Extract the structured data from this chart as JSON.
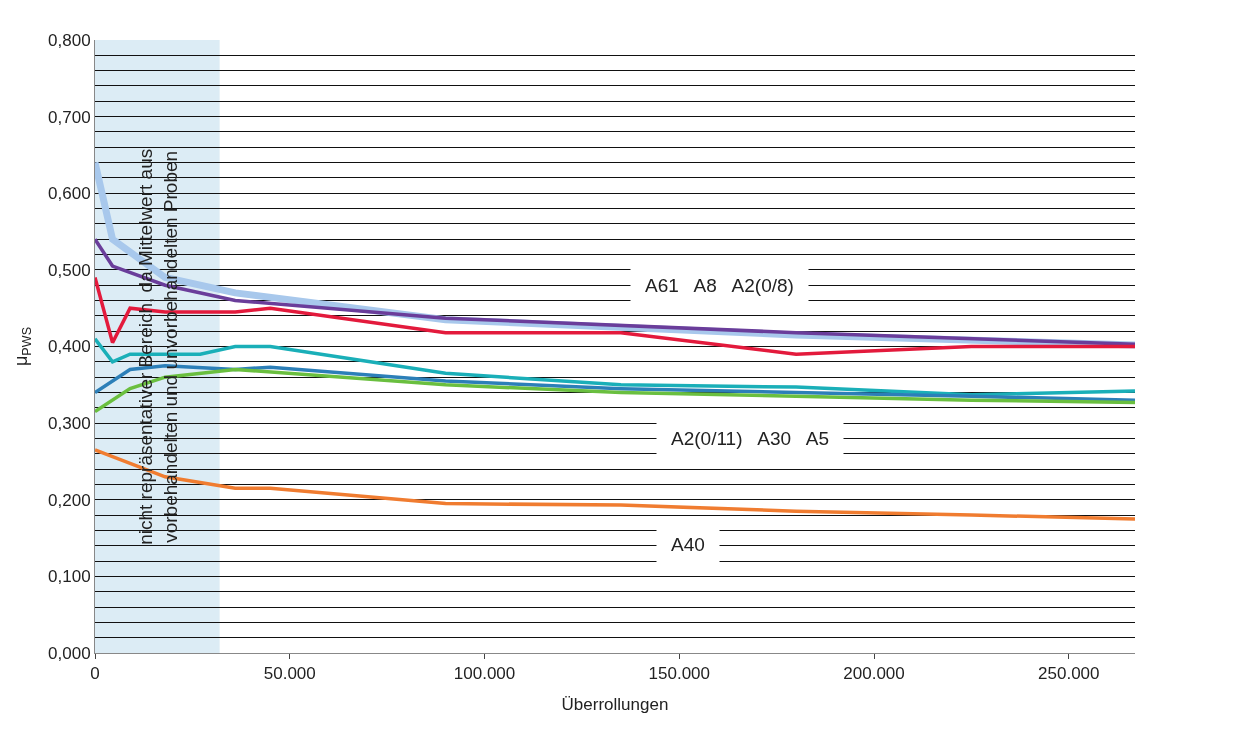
{
  "chart_data": {
    "type": "line",
    "xlabel": "Überrollungen",
    "ylabel": "μ$_{PWS}$",
    "xlim": [
      0,
      267000
    ],
    "xticks": [
      0,
      {
        "value": 50000,
        "label": "50.000"
      },
      {
        "value": 100000,
        "label": "100.000"
      },
      {
        "value": 150000,
        "label": "150.000"
      },
      {
        "value": 200000,
        "label": "200.000"
      },
      {
        "value": 250000,
        "label": "250.000"
      }
    ],
    "ylim": [
      0,
      0.8
    ],
    "yticks": [
      {
        "value": 0,
        "label": "0,000"
      },
      {
        "value": 0.02,
        "label": null
      },
      {
        "value": 0.04,
        "label": null
      },
      {
        "value": 0.06,
        "label": null
      },
      {
        "value": 0.08,
        "label": null
      },
      {
        "value": 0.1,
        "label": "0,100"
      },
      {
        "value": 0.12,
        "label": null
      },
      {
        "value": 0.14,
        "label": null
      },
      {
        "value": 0.16,
        "label": null
      },
      {
        "value": 0.18,
        "label": null
      },
      {
        "value": 0.2,
        "label": "0,200"
      },
      {
        "value": 0.22,
        "label": null
      },
      {
        "value": 0.24,
        "label": null
      },
      {
        "value": 0.26,
        "label": null
      },
      {
        "value": 0.28,
        "label": null
      },
      {
        "value": 0.3,
        "label": "0,300"
      },
      {
        "value": 0.32,
        "label": null
      },
      {
        "value": 0.34,
        "label": null
      },
      {
        "value": 0.36,
        "label": null
      },
      {
        "value": 0.38,
        "label": null
      },
      {
        "value": 0.4,
        "label": "0,400"
      },
      {
        "value": 0.42,
        "label": null
      },
      {
        "value": 0.44,
        "label": null
      },
      {
        "value": 0.46,
        "label": null
      },
      {
        "value": 0.48,
        "label": null
      },
      {
        "value": 0.5,
        "label": "0,500"
      },
      {
        "value": 0.52,
        "label": null
      },
      {
        "value": 0.54,
        "label": null
      },
      {
        "value": 0.56,
        "label": null
      },
      {
        "value": 0.58,
        "label": null
      },
      {
        "value": 0.6,
        "label": "0,600"
      },
      {
        "value": 0.62,
        "label": null
      },
      {
        "value": 0.64,
        "label": null
      },
      {
        "value": 0.66,
        "label": null
      },
      {
        "value": 0.68,
        "label": null
      },
      {
        "value": 0.7,
        "label": "0,700"
      },
      {
        "value": 0.72,
        "label": null
      },
      {
        "value": 0.74,
        "label": null
      },
      {
        "value": 0.76,
        "label": null
      },
      {
        "value": 0.78,
        "label": null
      },
      {
        "value": 0.8,
        "label": "0,800"
      }
    ],
    "grid": "y",
    "marker": "none",
    "line_style": "solid",
    "series": [
      {
        "color": "#a8c8ec",
        "x": [
          0,
          4500,
          18000,
          36000,
          90000,
          180000,
          267000
        ],
        "values": [
          0.64,
          0.54,
          0.49,
          0.47,
          0.435,
          0.415,
          0.402
        ]
      },
      {
        "color": "#6a3d9a",
        "x": [
          0,
          4500,
          18000,
          36000,
          90000,
          180000,
          267000
        ],
        "values": [
          0.54,
          0.505,
          0.48,
          0.46,
          0.437,
          0.418,
          0.403
        ]
      },
      {
        "color": "#e31a3c",
        "x": [
          0,
          4500,
          9000,
          18000,
          27000,
          36000,
          45000,
          90000,
          135000,
          180000,
          225000,
          267000
        ],
        "values": [
          0.49,
          0.405,
          0.45,
          0.445,
          0.445,
          0.445,
          0.45,
          0.418,
          0.418,
          0.39,
          0.4,
          0.4
        ]
      },
      {
        "color": "#1aafb8",
        "x": [
          0,
          4500,
          9000,
          18000,
          27000,
          36000,
          45000,
          90000,
          135000,
          180000,
          225000,
          267000
        ],
        "values": [
          0.41,
          0.38,
          0.39,
          0.39,
          0.39,
          0.4,
          0.4,
          0.365,
          0.35,
          0.347,
          0.337,
          0.342
        ]
      },
      {
        "color": "#2c7fb8",
        "x": [
          0,
          9000,
          18000,
          36000,
          45000,
          90000,
          135000,
          180000,
          225000,
          267000
        ],
        "values": [
          0.34,
          0.37,
          0.375,
          0.37,
          0.373,
          0.355,
          0.345,
          0.34,
          0.335,
          0.33
        ]
      },
      {
        "color": "#6abf3f",
        "x": [
          0,
          9000,
          18000,
          36000,
          90000,
          135000,
          180000,
          225000,
          267000
        ],
        "values": [
          0.315,
          0.345,
          0.36,
          0.37,
          0.35,
          0.34,
          0.335,
          0.33,
          0.327
        ]
      },
      {
        "color": "#f07c30",
        "x": [
          0,
          18000,
          36000,
          45000,
          90000,
          135000,
          180000,
          225000,
          267000
        ],
        "values": [
          0.265,
          0.23,
          0.215,
          0.215,
          0.195,
          0.193,
          0.185,
          0.18,
          0.175
        ]
      }
    ],
    "bands": [
      {
        "axis": "x",
        "from": 0,
        "to": 32000,
        "color": "#dcecf5",
        "label": "nicht repräsentativer Bereich, da Mittelwert aus\nvorbehandelten und unvorbehandelten Proben"
      }
    ],
    "annotations": [
      "A61   A8   A2(0/8)",
      "A2(0/11)   A30   A5",
      "A40"
    ]
  }
}
